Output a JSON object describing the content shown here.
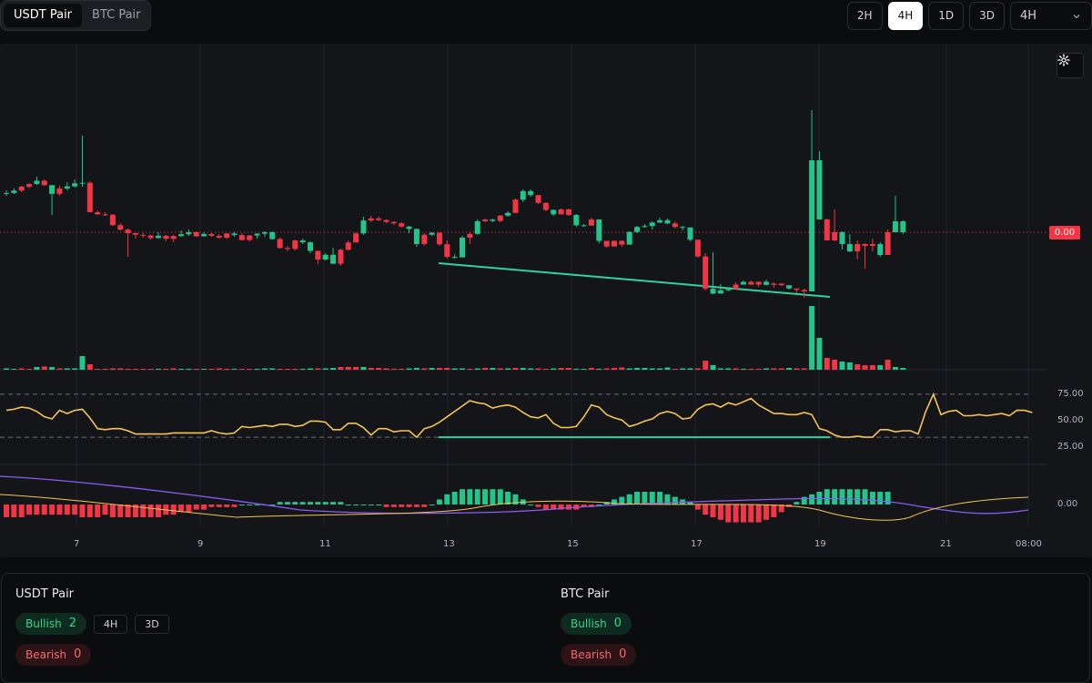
{
  "pair_tabs": [
    {
      "label": "USDT Pair",
      "active": true
    },
    {
      "label": "BTC Pair",
      "active": false
    }
  ],
  "timeframes": [
    {
      "label": "2H",
      "active": false
    },
    {
      "label": "4H",
      "active": true
    },
    {
      "label": "1D",
      "active": false
    },
    {
      "label": "3D",
      "active": false
    }
  ],
  "timeframe_select": {
    "value": "4H"
  },
  "chart": {
    "current_price_label": "0.00",
    "rsi_axis": [
      "75.00",
      "50.00",
      "25.00"
    ],
    "macd_axis": [
      "0.00"
    ],
    "x_axis": [
      "7",
      "9",
      "11",
      "13",
      "15",
      "17",
      "19",
      "21",
      "08:00"
    ],
    "colors": {
      "up": "#22c58b",
      "down": "#f23645",
      "rsi": "#f5c451",
      "signal_line": "#8b5cf6",
      "divergence": "#2ed3a0"
    }
  },
  "chart_data": {
    "type": "candlestick",
    "x_ticks": [
      "7",
      "9",
      "11",
      "13",
      "15",
      "17",
      "19",
      "21",
      "08:00"
    ],
    "price_label": "0.00",
    "candles": [
      [
        0,
        212.5,
        211.9,
        215,
        209,
        1.5
      ],
      [
        0,
        211.9,
        209.3,
        213,
        207,
        1
      ],
      [
        1,
        209.3,
        205,
        211,
        204,
        1.5
      ],
      [
        1,
        205,
        202.1,
        207,
        201,
        1
      ],
      [
        0,
        202.1,
        198.5,
        203,
        194,
        3
      ],
      [
        1,
        198.5,
        203.3,
        204,
        197,
        3.5
      ],
      [
        0,
        203.3,
        212.9,
        213.5,
        236,
        3
      ],
      [
        1,
        212.9,
        207,
        215,
        204,
        1.5
      ],
      [
        0,
        207,
        204.6,
        209,
        200,
        1.5
      ],
      [
        0,
        204.6,
        201.3,
        206,
        197,
        1.5
      ],
      [
        0,
        201.3,
        200.7,
        205,
        149,
        15
      ],
      [
        1,
        200.7,
        233,
        233,
        199,
        6
      ],
      [
        1,
        233,
        235.3,
        236,
        231,
        1
      ],
      [
        1,
        235.3,
        235.8,
        237,
        233,
        1
      ],
      [
        1,
        235.8,
        247.3,
        248,
        235,
        1.5
      ],
      [
        1,
        247.3,
        252.2,
        253,
        245,
        1.5
      ],
      [
        1,
        252.2,
        256,
        282,
        251,
        1
      ],
      [
        1,
        256,
        257.8,
        262,
        256,
        1
      ],
      [
        1,
        257.8,
        258.6,
        261,
        256,
        1
      ],
      [
        1,
        258.6,
        261.4,
        263,
        258,
        1
      ],
      [
        0,
        261.4,
        258.9,
        262,
        255,
        1
      ],
      [
        1,
        258.9,
        262.2,
        265,
        258,
        1
      ],
      [
        1,
        262.2,
        259.2,
        266,
        258,
        1.5
      ],
      [
        0,
        259.2,
        257.2,
        260,
        253,
        1
      ],
      [
        0,
        257.2,
        255,
        259,
        252,
        1
      ],
      [
        1,
        255,
        259.4,
        260,
        254,
        1
      ],
      [
        0,
        259.4,
        256.9,
        260,
        255,
        1
      ],
      [
        1,
        256.9,
        259,
        260,
        256,
        1
      ],
      [
        1,
        259,
        261,
        262,
        257,
        1.5
      ],
      [
        1,
        261,
        256.4,
        262,
        256,
        1
      ],
      [
        0,
        256.4,
        258.1,
        260,
        255,
        1
      ],
      [
        1,
        258.1,
        263.6,
        264,
        256,
        1
      ],
      [
        1,
        263.6,
        258.6,
        265,
        258,
        1
      ],
      [
        0,
        258.6,
        256.6,
        262,
        256,
        1
      ],
      [
        0,
        256.6,
        255,
        260,
        254,
        1.5
      ],
      [
        0,
        255,
        262.5,
        263,
        254,
        1.5
      ],
      [
        1,
        262.5,
        272.3,
        273,
        261,
        1
      ],
      [
        1,
        272.3,
        273.4,
        276,
        270,
        1
      ],
      [
        1,
        273.4,
        264.1,
        275,
        263,
        1
      ],
      [
        0,
        264.1,
        266.1,
        268,
        262,
        1
      ],
      [
        0,
        266.1,
        275.5,
        278,
        265,
        1.5
      ],
      [
        1,
        275.5,
        285,
        290,
        275,
        1.5
      ],
      [
        0,
        285,
        279.8,
        286,
        278,
        1.5
      ],
      [
        0,
        279.8,
        289.6,
        290,
        272,
        2
      ],
      [
        1,
        289.6,
        274.3,
        292,
        273,
        3
      ],
      [
        1,
        274.3,
        266.3,
        275,
        264,
        3
      ],
      [
        1,
        266.3,
        256.3,
        266,
        255,
        3
      ],
      [
        0,
        256.3,
        242.1,
        258,
        238,
        3
      ],
      [
        1,
        242.1,
        239.8,
        244,
        237,
        2
      ],
      [
        1,
        239.8,
        241.6,
        243,
        238,
        2
      ],
      [
        1,
        241.6,
        243.7,
        245,
        241,
        1.5
      ],
      [
        1,
        243.7,
        245.2,
        247,
        243,
        1
      ],
      [
        1,
        245.2,
        248.8,
        250,
        244,
        1
      ],
      [
        0,
        248.8,
        251.4,
        256,
        248,
        1.5
      ],
      [
        0,
        251.4,
        268,
        271,
        251,
        2
      ],
      [
        1,
        268,
        257.8,
        270,
        256,
        1.5
      ],
      [
        0,
        257.8,
        255.6,
        259,
        255,
        2
      ],
      [
        1,
        255.6,
        268.2,
        270,
        255,
        2
      ],
      [
        1,
        268.2,
        282.1,
        284,
        264,
        2
      ],
      [
        0,
        282.1,
        282.6,
        284,
        279,
        1.5
      ],
      [
        0,
        282.6,
        261,
        262,
        259,
        1.5
      ],
      [
        1,
        261,
        256.8,
        268,
        255,
        1
      ],
      [
        0,
        256.8,
        243,
        258,
        241,
        1.5
      ],
      [
        1,
        243,
        241.2,
        244,
        240,
        2
      ],
      [
        0,
        241.2,
        242.6,
        244,
        240,
        2
      ],
      [
        1,
        242.6,
        236.8,
        244,
        236,
        1.5
      ],
      [
        0,
        236.8,
        233.8,
        238,
        232,
        1.5
      ],
      [
        1,
        233.8,
        219.3,
        222,
        218,
        2
      ],
      [
        0,
        219.3,
        209.8,
        222,
        208,
        2
      ],
      [
        0,
        209.8,
        214.2,
        216,
        208,
        1.5
      ],
      [
        1,
        214.2,
        222.8,
        224,
        214,
        1.5
      ],
      [
        1,
        222.8,
        230.5,
        232,
        222,
        1
      ],
      [
        0,
        230.5,
        235.4,
        237,
        230,
        1.5
      ],
      [
        1,
        235.4,
        229.9,
        230,
        229,
        2
      ],
      [
        1,
        229.9,
        236,
        237,
        229,
        2
      ],
      [
        0,
        236,
        247.4,
        249,
        235,
        1
      ],
      [
        0,
        247.4,
        247.8,
        249,
        246,
        1
      ],
      [
        1,
        247.8,
        241,
        242,
        239,
        2
      ],
      [
        0,
        241,
        264.5,
        267,
        262,
        1
      ],
      [
        1,
        264.5,
        270.7,
        272,
        265,
        1.5
      ],
      [
        1,
        270.7,
        264.5,
        266,
        264,
        2
      ],
      [
        1,
        264.5,
        268.6,
        271,
        264,
        2.5
      ],
      [
        0,
        268.6,
        254.7,
        262,
        254,
        1.5
      ],
      [
        0,
        254.7,
        249.2,
        256,
        248,
        2
      ],
      [
        0,
        249.2,
        248.3,
        250,
        246,
        2
      ],
      [
        0,
        248.3,
        244.4,
        252,
        243,
        1.5
      ],
      [
        0,
        244.4,
        241.8,
        245,
        239,
        1.5
      ],
      [
        0,
        241.8,
        245.3,
        246,
        240,
        2.5
      ],
      [
        1,
        245.3,
        249.2,
        251,
        243,
        1
      ],
      [
        0,
        249.2,
        249.7,
        253,
        248,
        1.5
      ],
      [
        0,
        249.7,
        263.2,
        265,
        259,
        1.5
      ],
      [
        1,
        263.2,
        281.6,
        283,
        278,
        1.5
      ],
      [
        1,
        281.6,
        317.1,
        319,
        278,
        10
      ],
      [
        0,
        317.1,
        322.4,
        323,
        277,
        5
      ],
      [
        0,
        322.4,
        318.7,
        320,
        312,
        1.5
      ],
      [
        0,
        318.7,
        317.5,
        320,
        316,
        1.5
      ],
      [
        1,
        317.5,
        312.5,
        313,
        310,
        1.5
      ],
      [
        0,
        312.5,
        309.5,
        310,
        308,
        1
      ],
      [
        1,
        309.5,
        312.6,
        313,
        308,
        1
      ],
      [
        1,
        312.6,
        309.4,
        315,
        309,
        1
      ],
      [
        0,
        309.4,
        312.8,
        313,
        307,
        1.5
      ],
      [
        1,
        312.8,
        311.4,
        316,
        310,
        1.5
      ],
      [
        1,
        311.4,
        313.2,
        314,
        312,
        1.5
      ],
      [
        0,
        313.2,
        316.8,
        318,
        314,
        2
      ],
      [
        1,
        316.8,
        318.4,
        322,
        317,
        1.5
      ],
      [
        1,
        318.4,
        320,
        327,
        317,
        1.5
      ],
      [
        0,
        320,
        176,
        121,
        320,
        70
      ],
      [
        0,
        176,
        241,
        166,
        241,
        35
      ],
      [
        1,
        241,
        264,
        264,
        240,
        13
      ],
      [
        1,
        264,
        255,
        265,
        230,
        11
      ],
      [
        0,
        255,
        268,
        274,
        254,
        9
      ],
      [
        0,
        268,
        276,
        277,
        257,
        8
      ],
      [
        1,
        276,
        268,
        285,
        264,
        6
      ],
      [
        1,
        268,
        270,
        295,
        267,
        5
      ],
      [
        1,
        270,
        268,
        276,
        262,
        5
      ],
      [
        0,
        268,
        280,
        282,
        266,
        5
      ],
      [
        1,
        280,
        255,
        255,
        252,
        11
      ],
      [
        0,
        255,
        243,
        243,
        215,
        3
      ],
      [
        0,
        243,
        255,
        257,
        242,
        2
      ]
    ],
    "rsi": [
      55,
      56,
      58,
      57,
      54,
      49,
      47,
      55,
      52,
      55,
      56,
      48,
      38,
      37,
      38,
      38,
      36,
      33,
      33,
      33,
      33,
      33,
      34,
      34,
      34,
      34,
      34,
      36,
      34,
      33,
      34,
      40,
      39,
      40,
      41,
      40,
      42,
      42,
      40,
      41,
      45,
      45,
      44,
      37,
      37,
      43,
      43,
      39,
      32,
      38,
      38,
      35,
      36,
      36,
      30,
      38,
      40,
      44,
      49,
      54,
      59,
      64,
      62,
      61,
      57,
      59,
      60,
      58,
      53,
      49,
      48,
      51,
      43,
      39,
      39,
      40,
      49,
      60,
      58,
      51,
      48,
      46,
      40,
      42,
      45,
      47,
      52,
      54,
      52,
      47,
      48,
      56,
      60,
      61,
      58,
      62,
      60,
      63,
      66,
      60,
      56,
      52,
      52,
      51,
      51,
      53,
      51,
      38,
      36,
      32,
      30,
      30,
      31,
      30,
      30,
      37,
      37,
      35,
      36,
      36,
      33,
      54,
      70,
      51,
      54,
      55,
      50,
      50,
      51,
      50,
      51,
      52,
      50,
      55,
      55,
      53
    ],
    "macd_hist": [
      -5,
      -5,
      -5,
      -4,
      -4,
      -4,
      -4,
      -4,
      -4,
      -4,
      -5,
      -5,
      -5,
      -4,
      -5,
      -5,
      -5,
      -5,
      -5,
      -5,
      -5,
      -4,
      -4,
      -3,
      -3,
      -2,
      -2,
      -1,
      -1,
      -1,
      -1,
      0,
      0,
      0,
      0,
      0,
      1,
      1,
      1,
      1,
      1,
      1,
      1,
      1,
      1,
      0,
      0,
      0,
      0,
      0,
      -1,
      -1,
      -1,
      -1,
      -1,
      -1,
      0,
      2,
      4,
      5,
      6,
      6,
      6,
      6,
      6,
      6,
      5,
      4,
      2,
      0,
      -1,
      -2,
      -2,
      -2,
      -2,
      -2,
      -1,
      -1,
      0,
      1,
      2,
      3,
      4,
      5,
      5,
      5,
      5,
      4,
      3,
      2,
      1,
      -2,
      -4,
      -5,
      -6,
      -7,
      -7,
      -7,
      -7,
      -7,
      -6,
      -5,
      -3,
      -1,
      1,
      3,
      4,
      5,
      6,
      6,
      6,
      6,
      6,
      6,
      5,
      5,
      5
    ],
    "rsi_levels": [
      70,
      30
    ],
    "rsi_axis": [
      75,
      50,
      25
    ]
  },
  "summary": {
    "usdt": {
      "title": "USDT Pair",
      "bullish_label": "Bullish",
      "bullish_count": "2",
      "bearish_label": "Bearish",
      "bearish_count": "0",
      "timeframes": [
        "4H",
        "3D"
      ]
    },
    "btc": {
      "title": "BTC Pair",
      "bullish_label": "Bullish",
      "bullish_count": "0",
      "bearish_label": "Bearish",
      "bearish_count": "0"
    }
  }
}
